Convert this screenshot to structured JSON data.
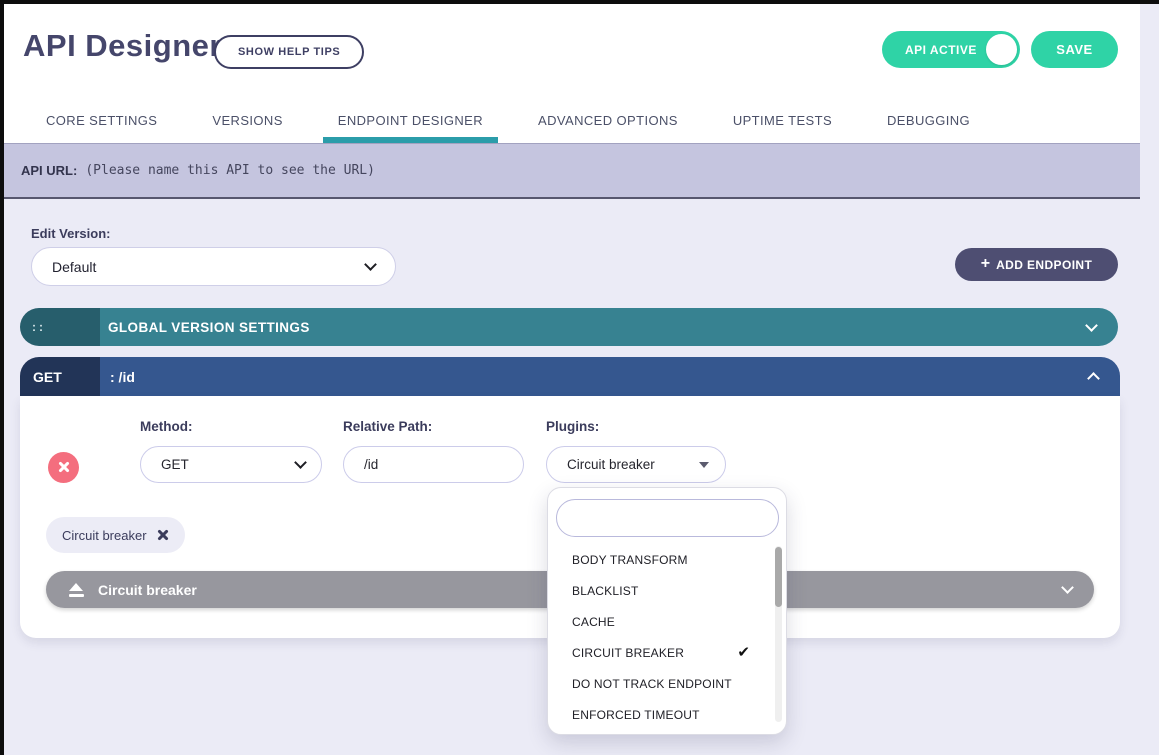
{
  "header": {
    "title": "API Designer",
    "help_button_label": "SHOW HELP TIPS",
    "api_active_toggle": {
      "label": "API ACTIVE",
      "state": "on"
    },
    "save_button_label": "SAVE"
  },
  "tabs": [
    {
      "label": "CORE SETTINGS",
      "active": false
    },
    {
      "label": "VERSIONS",
      "active": false
    },
    {
      "label": "ENDPOINT DESIGNER",
      "active": true
    },
    {
      "label": "ADVANCED OPTIONS",
      "active": false
    },
    {
      "label": "UPTIME TESTS",
      "active": false
    },
    {
      "label": "DEBUGGING",
      "active": false
    }
  ],
  "api_url_bar": {
    "label": "API URL:",
    "hint": "(Please name this API to see the URL)"
  },
  "version_section": {
    "label": "Edit Version:",
    "selected_version": "Default",
    "add_endpoint_button": {
      "plus": "+",
      "label": "ADD ENDPOINT"
    }
  },
  "global_version_bar": {
    "drag_handle": "::",
    "label": "GLOBAL VERSION SETTINGS",
    "state": "collapsed"
  },
  "endpoint": {
    "method_badge": "GET",
    "path_display": ": /id",
    "state": "expanded",
    "fields": {
      "method": {
        "label": "Method:",
        "value": "GET"
      },
      "relative_path": {
        "label": "Relative Path:",
        "value": "/id"
      },
      "plugins": {
        "label": "Plugins:",
        "value": "Circuit breaker"
      }
    },
    "selected_plugin_chip": "Circuit breaker",
    "plugin_section_bar": "Circuit breaker"
  },
  "plugin_dropdown": {
    "search_value": "",
    "check_glyph": "✔",
    "options": [
      {
        "label": "BODY TRANSFORM",
        "checked": false
      },
      {
        "label": "BLACKLIST",
        "checked": false
      },
      {
        "label": "CACHE",
        "checked": false
      },
      {
        "label": "CIRCUIT BREAKER",
        "checked": true
      },
      {
        "label": "DO NOT TRACK ENDPOINT",
        "checked": false
      },
      {
        "label": "ENFORCED TIMEOUT",
        "checked": false
      }
    ]
  },
  "colors": {
    "accent_teal": "#2fd3a6",
    "tab_active_underline": "#2b9daa",
    "global_bar_teal": "#378291",
    "global_handle_teal": "#275e6c",
    "endpoint_bar_blue": "#35578f",
    "endpoint_handle_navy": "#223457",
    "danger_red": "#f46e7e",
    "dark_button": "#4e4e72",
    "url_bar_lavender": "#c5c5df",
    "page_background": "#ebebf6"
  }
}
